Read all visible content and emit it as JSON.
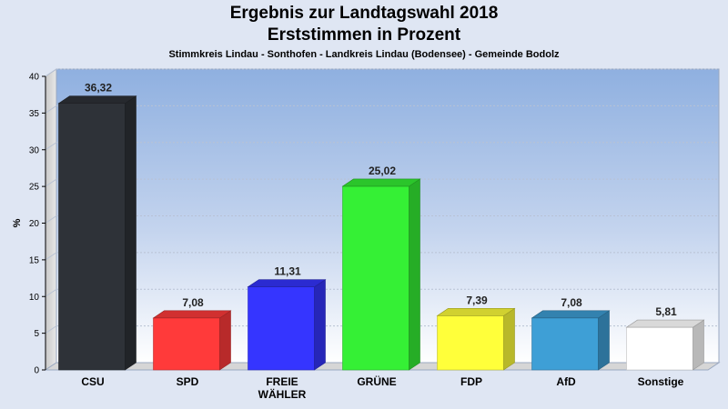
{
  "header": {
    "title_line1": "Ergebnis zur Landtagswahl 2018",
    "title_line2": "Erststimmen in Prozent",
    "subtitle": "Stimmkreis Lindau - Sonthofen - Landkreis Lindau (Bodensee) - Gemeinde Bodolz"
  },
  "chart_data": {
    "type": "bar",
    "title": "Ergebnis zur Landtagswahl 2018 Erststimmen in Prozent",
    "subtitle": "Stimmkreis Lindau - Sonthofen - Landkreis Lindau (Bodensee) - Gemeinde Bodolz",
    "categories": [
      "CSU",
      "SPD",
      "FREIE WÄHLER",
      "GRÜNE",
      "FDP",
      "AfD",
      "Sonstige"
    ],
    "category_lines": [
      [
        "CSU"
      ],
      [
        "SPD"
      ],
      [
        "FREIE",
        "WÄHLER"
      ],
      [
        "GRÜNE"
      ],
      [
        "FDP"
      ],
      [
        "AfD"
      ],
      [
        "Sonstige"
      ]
    ],
    "values": [
      36.32,
      7.08,
      11.31,
      25.02,
      7.39,
      7.08,
      5.81
    ],
    "value_labels": [
      "36,32",
      "7,08",
      "11,31",
      "25,02",
      "7,39",
      "7,08",
      "5,81"
    ],
    "colors": [
      "#2e3238",
      "#ff3a3a",
      "#3535ff",
      "#35f035",
      "#ffff3a",
      "#3e9fd6",
      "#ffffff"
    ],
    "xlabel": "",
    "ylabel": "%",
    "ylim": [
      0,
      40
    ],
    "yticks": [
      0,
      5,
      10,
      15,
      20,
      25,
      30,
      35,
      40
    ],
    "grid": true,
    "style": "3d"
  }
}
